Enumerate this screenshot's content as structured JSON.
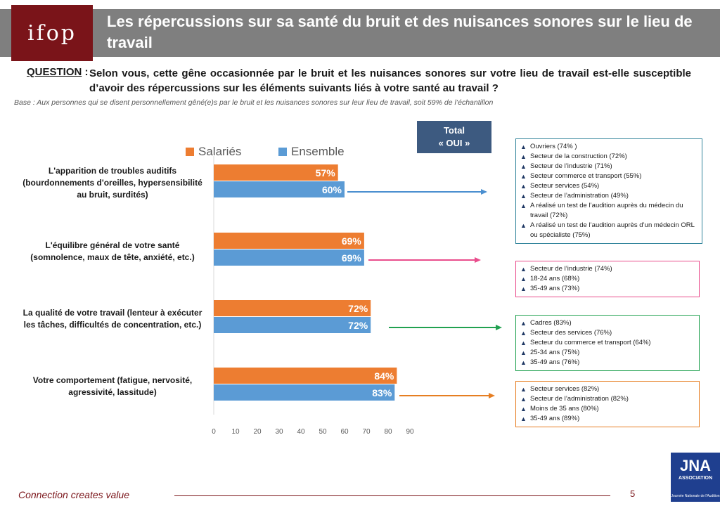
{
  "header": {
    "logo_text": "ifop",
    "title": "Les répercussions sur sa santé du bruit et des nuisances sonores sur le lieu de travail"
  },
  "question": {
    "label": "QUESTION",
    "separator": " :",
    "text": "Selon vous, cette gêne occasionnée par le bruit et les nuisances sonores sur votre lieu de travail est-elle susceptible d’avoir des répercussions sur les éléments suivants liés à votre santé au travail ?"
  },
  "base": "Base : Aux personnes qui se disent personnellement gêné(e)s par le bruit et les nuisances sonores sur leur lieu de travail, soit 59% de l’échantillon",
  "total_box": {
    "line1": "Total",
    "line2": "« OUI »",
    "color": "#3d5a80"
  },
  "chart_data": {
    "type": "bar",
    "orientation": "horizontal",
    "categories": [
      "L'apparition de troubles auditifs (bourdonnements d'oreilles, hypersensibilité au bruit, surdités)",
      "L'équilibre général de votre santé (somnolence, maux de tête, anxiété, etc.)",
      "La qualité de votre travail (lenteur à exécuter les tâches, difficultés de concentration, etc.)",
      "Votre comportement (fatigue, nervosité, agressivité, lassitude)"
    ],
    "series": [
      {
        "name": "Salariés",
        "color": "#ed7d31",
        "values": [
          57,
          69,
          72,
          84
        ],
        "labels": [
          "57%",
          "69%",
          "72%",
          "84%"
        ]
      },
      {
        "name": "Ensemble",
        "color": "#5b9bd5",
        "values": [
          60,
          69,
          72,
          83
        ],
        "labels": [
          "60%",
          "69%",
          "72%",
          "83%"
        ]
      }
    ],
    "xlim": [
      0,
      90
    ],
    "xticks": [
      0,
      10,
      20,
      30,
      40,
      50,
      60,
      70,
      80,
      90
    ],
    "legend_position": "top"
  },
  "category_lines": [
    [
      "L'apparition de troubles auditifs",
      "(bourdonnements d'oreilles, hypersensibilité",
      "au bruit, surdités)"
    ],
    [
      "L'équilibre général de votre santé",
      "(somnolence, maux de tête, anxiété, etc.)"
    ],
    [
      "La qualité de votre travail (lenteur à exécuter",
      "les tâches, difficultés de concentration, etc.)"
    ],
    [
      "Votre comportement (fatigue, nervosité,",
      "agressivité, lassitude)"
    ]
  ],
  "subgroups": [
    {
      "color": "#31849b",
      "arrow_color": "#4a8fd0",
      "items": [
        "Ouvriers (74% )",
        "Secteur de la construction (72%)",
        "Secteur de l’industrie (71%)",
        "Secteur commerce et transport (55%)",
        "Secteur services (54%)",
        "Secteur de l’administration (49%)",
        "A réalisé un test de l’audition auprès du médecin du travail (72%)",
        "A réalisé un test de l’audition auprès d’un médecin ORL ou spécialiste (75%)"
      ]
    },
    {
      "color": "#e94d8c",
      "arrow_color": "#e94d8c",
      "items": [
        "Secteur de l’industrie (74%)",
        "18-24 ans (68%)",
        "35-49 ans (73%)"
      ]
    },
    {
      "color": "#21a150",
      "arrow_color": "#21a150",
      "items": [
        "Cadres (83%)",
        "Secteur des services (76%)",
        "Secteur du commerce et transport (64%)",
        "25-34 ans (75%)",
        "35-49 ans (76%)"
      ]
    },
    {
      "color": "#e67e22",
      "arrow_color": "#e67e22",
      "items": [
        "Secteur services (82%)",
        "Secteur de l’administration (82%)",
        "Moins de 35 ans (80%)",
        "35-49 ans (89%)"
      ]
    }
  ],
  "footer": {
    "text": "Connection creates value",
    "page": "5",
    "jna_logo_text": "JNA",
    "jna_logo_sub": "ASSOCIATION",
    "jna_caption": "Journée Nationale de l'Audition"
  }
}
